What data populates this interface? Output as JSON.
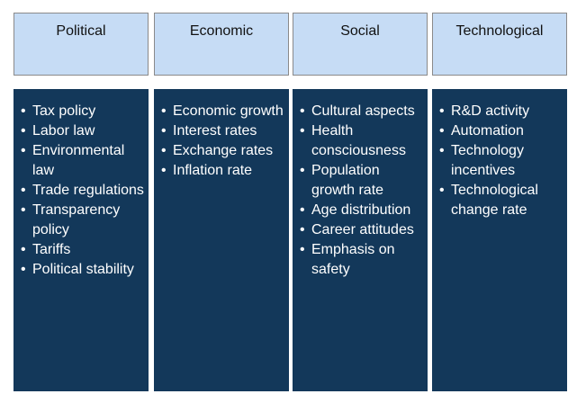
{
  "columns": [
    {
      "title": "Political",
      "items": [
        "Tax policy",
        "Labor law",
        "Environmental law",
        "Trade regulations",
        "Transparency policy",
        "Tariffs",
        "Political stability"
      ]
    },
    {
      "title": "Economic",
      "items": [
        "Economic growth",
        "Interest rates",
        "Exchange rates",
        "Inflation rate"
      ]
    },
    {
      "title": "Social",
      "items": [
        "Cultural aspects",
        "Health consciousness",
        "Population growth rate",
        "Age distribution",
        "Career attitudes",
        "Emphasis on safety"
      ]
    },
    {
      "title": "Technological",
      "items": [
        "R&D activity",
        "Automation",
        "Technology incentives",
        "Technological change rate"
      ]
    }
  ],
  "colors": {
    "header_fill": "#c6dcf5",
    "header_border": "#8a8a8a",
    "panel_fill": "#13385a",
    "panel_text": "#ffffff"
  }
}
